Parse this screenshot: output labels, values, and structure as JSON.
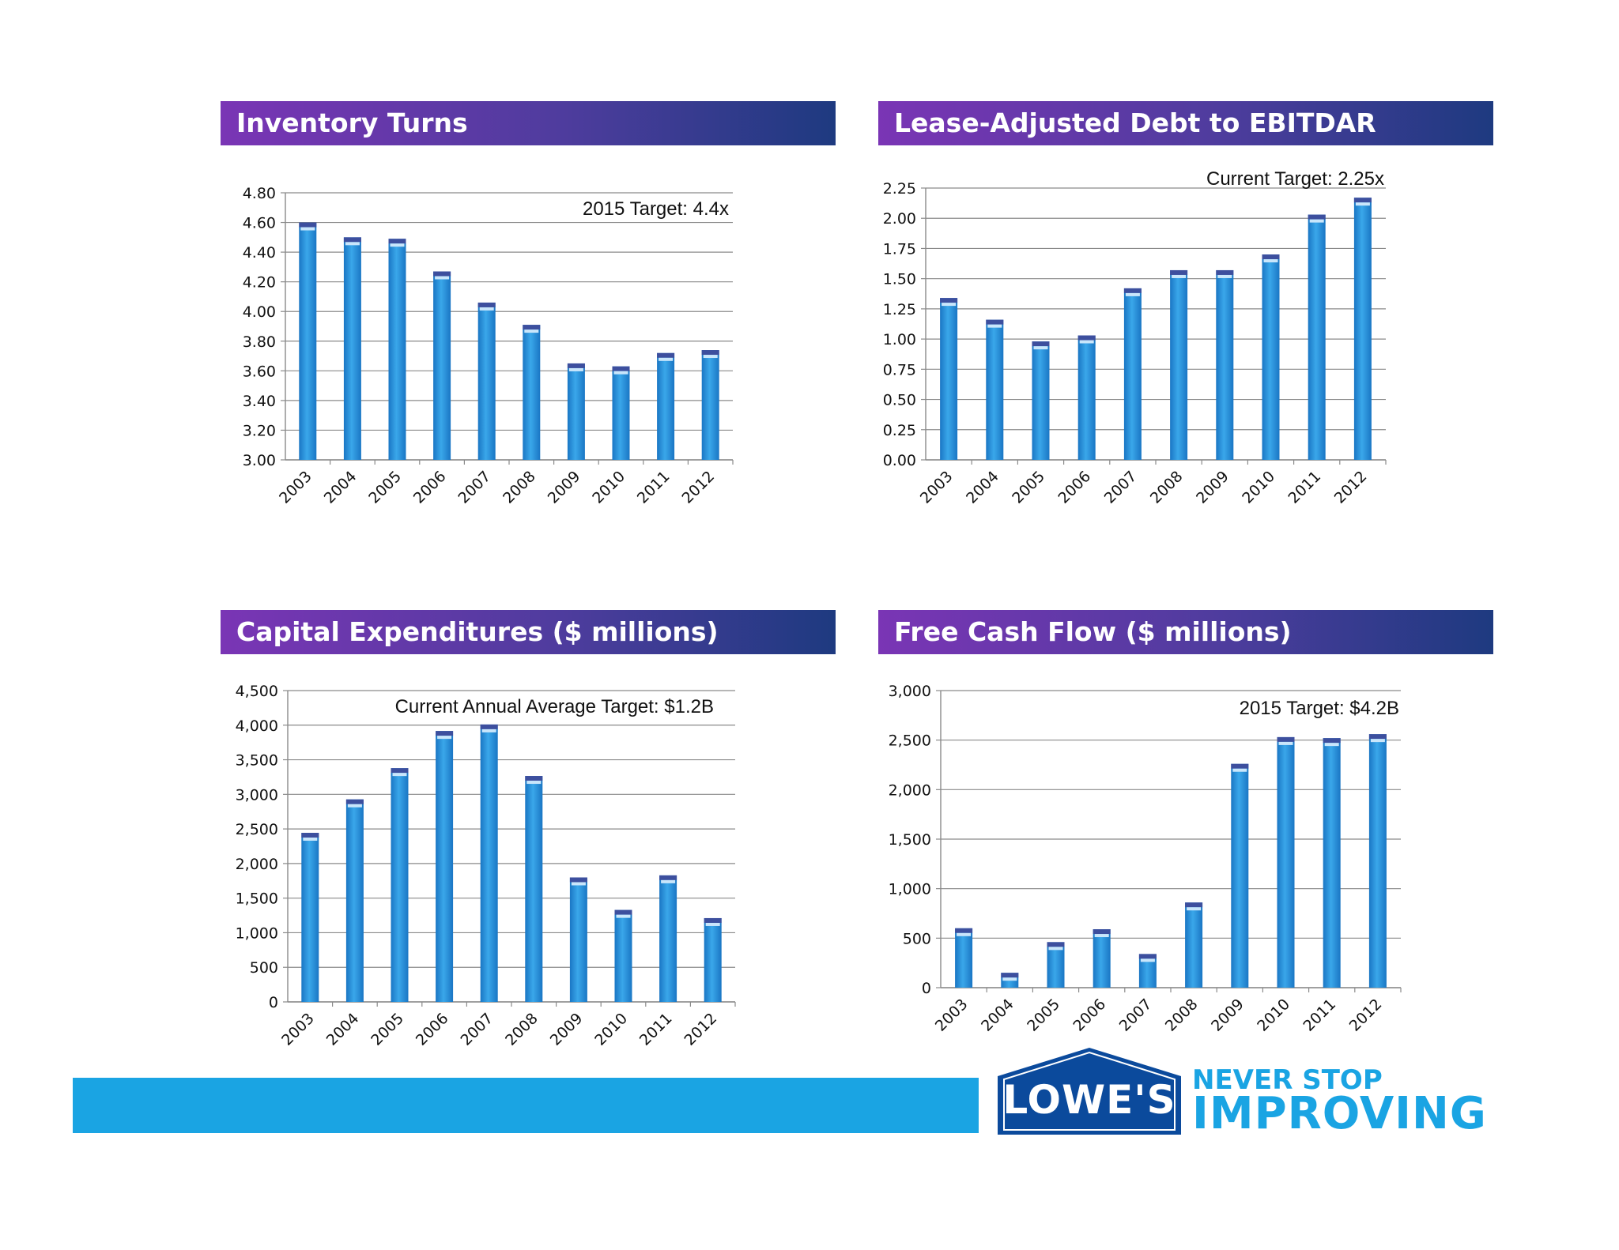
{
  "colors": {
    "header_start": "#7a35b5",
    "header_end": "#1e3a80",
    "bar": "#3aa7ea",
    "bar_dark": "#1a76c4",
    "bar_cap": "#3d4f9e",
    "band": "#1aa4e3",
    "logo": "#0b4a9c"
  },
  "panels": [
    {
      "title": "Inventory Turns",
      "annotation": "2015 Target: 4.4x"
    },
    {
      "title": "Lease-Adjusted Debt to EBITDAR",
      "annotation": "Current Target: 2.25x"
    },
    {
      "title": "Capital Expenditures ($ millions)",
      "annotation": "Current Annual Average Target: $1.2B"
    },
    {
      "title": "Free Cash Flow ($ millions)",
      "annotation": "2015  Target: $4.2B"
    }
  ],
  "chart_data": [
    {
      "type": "bar",
      "title": "Inventory Turns",
      "categories": [
        "2003",
        "2004",
        "2005",
        "2006",
        "2007",
        "2008",
        "2009",
        "2010",
        "2011",
        "2012"
      ],
      "values": [
        4.6,
        4.5,
        4.49,
        4.27,
        4.06,
        3.91,
        3.65,
        3.63,
        3.72,
        3.74
      ],
      "ylim": [
        3.0,
        4.8
      ],
      "yticks": [
        "3.00",
        "3.20",
        "3.40",
        "3.60",
        "3.80",
        "4.00",
        "4.20",
        "4.40",
        "4.60",
        "4.80"
      ],
      "grid": true
    },
    {
      "type": "bar",
      "title": "Lease-Adjusted Debt to EBITDAR",
      "categories": [
        "2003",
        "2004",
        "2005",
        "2006",
        "2007",
        "2008",
        "2009",
        "2010",
        "2011",
        "2012"
      ],
      "values": [
        1.34,
        1.16,
        0.98,
        1.03,
        1.42,
        1.57,
        1.57,
        1.7,
        2.03,
        2.17
      ],
      "ylim": [
        0,
        2.25
      ],
      "yticks": [
        "0.00",
        "0.25",
        "0.50",
        "0.75",
        "1.00",
        "1.25",
        "1.50",
        "1.75",
        "2.00",
        "2.25"
      ],
      "grid": true
    },
    {
      "type": "bar",
      "title": "Capital Expenditures ($ millions)",
      "categories": [
        "2003",
        "2004",
        "2005",
        "2006",
        "2007",
        "2008",
        "2009",
        "2010",
        "2011",
        "2012"
      ],
      "values": [
        2444,
        2927,
        3379,
        3916,
        4010,
        3266,
        1799,
        1329,
        1829,
        1211
      ],
      "ylim": [
        0,
        4500
      ],
      "yticks": [
        "0",
        "500",
        "1,000",
        "1,500",
        "2,000",
        "2,500",
        "3,000",
        "3,500",
        "4,000",
        "4,500"
      ],
      "grid": true
    },
    {
      "type": "bar",
      "title": "Free Cash Flow ($ millions)",
      "categories": [
        "2003",
        "2004",
        "2005",
        "2006",
        "2007",
        "2008",
        "2009",
        "2010",
        "2011",
        "2012"
      ],
      "values": [
        600,
        150,
        460,
        590,
        340,
        860,
        2260,
        2530,
        2520,
        2560
      ],
      "ylim": [
        0,
        3000
      ],
      "yticks": [
        "0",
        "500",
        "1,000",
        "1,500",
        "2,000",
        "2,500",
        "3,000"
      ],
      "grid": true
    }
  ],
  "footer": {
    "logo_text": "LOWE'S",
    "tagline_line1": "NEVER STOP",
    "tagline_line2": "IMPROVING"
  }
}
